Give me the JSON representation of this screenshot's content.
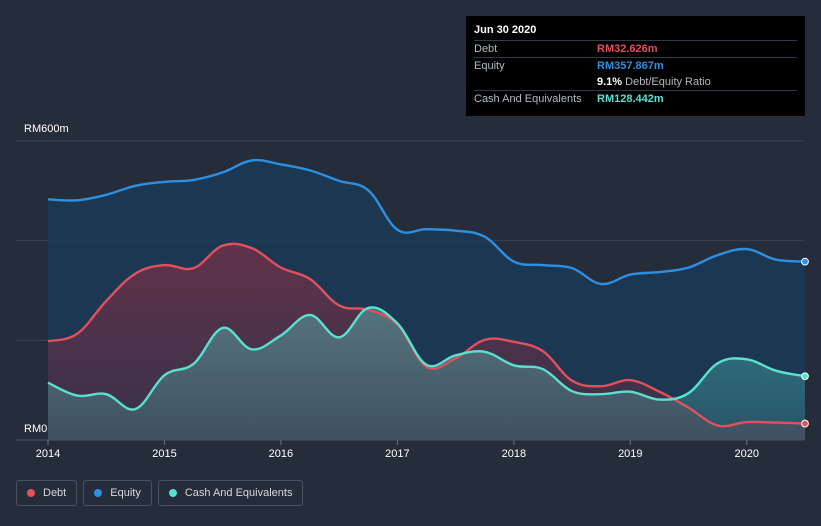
{
  "chart_data": {
    "type": "area",
    "currency_prefix": "RM",
    "y_top_label": "RM600m",
    "y_bottom_label": "RM0",
    "ylim": [
      0,
      600
    ],
    "xlim": [
      2014,
      2020.5
    ],
    "x_ticks": [
      {
        "value": 2014,
        "label": "2014"
      },
      {
        "value": 2015,
        "label": "2015"
      },
      {
        "value": 2016,
        "label": "2016"
      },
      {
        "value": 2017,
        "label": "2017"
      },
      {
        "value": 2018,
        "label": "2018"
      },
      {
        "value": 2019,
        "label": "2019"
      },
      {
        "value": 2020,
        "label": "2020"
      }
    ],
    "series": [
      {
        "name": "Equity",
        "color": "#2d8fe0",
        "points": [
          [
            2014.0,
            483
          ],
          [
            2014.25,
            481
          ],
          [
            2014.5,
            492
          ],
          [
            2014.75,
            510
          ],
          [
            2015.0,
            518
          ],
          [
            2015.25,
            522
          ],
          [
            2015.5,
            537
          ],
          [
            2015.75,
            561
          ],
          [
            2016.0,
            553
          ],
          [
            2016.25,
            541
          ],
          [
            2016.5,
            520
          ],
          [
            2016.75,
            501
          ],
          [
            2017.0,
            422
          ],
          [
            2017.25,
            423
          ],
          [
            2017.5,
            420
          ],
          [
            2017.75,
            408
          ],
          [
            2018.0,
            358
          ],
          [
            2018.25,
            351
          ],
          [
            2018.5,
            345
          ],
          [
            2018.75,
            313
          ],
          [
            2019.0,
            332
          ],
          [
            2019.25,
            337
          ],
          [
            2019.5,
            346
          ],
          [
            2019.75,
            371
          ],
          [
            2020.0,
            383
          ],
          [
            2020.25,
            362
          ],
          [
            2020.5,
            358
          ]
        ]
      },
      {
        "name": "Debt",
        "color": "#e0505e",
        "points": [
          [
            2014.0,
            198
          ],
          [
            2014.25,
            213
          ],
          [
            2014.5,
            279
          ],
          [
            2014.75,
            334
          ],
          [
            2015.0,
            351
          ],
          [
            2015.25,
            345
          ],
          [
            2015.5,
            390
          ],
          [
            2015.75,
            385
          ],
          [
            2016.0,
            346
          ],
          [
            2016.25,
            323
          ],
          [
            2016.5,
            270
          ],
          [
            2016.75,
            261
          ],
          [
            2017.0,
            232
          ],
          [
            2017.25,
            147
          ],
          [
            2017.5,
            164
          ],
          [
            2017.75,
            201
          ],
          [
            2018.0,
            197
          ],
          [
            2018.25,
            178
          ],
          [
            2018.5,
            119
          ],
          [
            2018.75,
            108
          ],
          [
            2019.0,
            120
          ],
          [
            2019.25,
            97
          ],
          [
            2019.5,
            65
          ],
          [
            2019.75,
            29
          ],
          [
            2020.0,
            36
          ],
          [
            2020.25,
            35
          ],
          [
            2020.5,
            33
          ]
        ]
      },
      {
        "name": "Cash And Equivalents",
        "color": "#5ae0cf",
        "points": [
          [
            2014.0,
            115
          ],
          [
            2014.25,
            89
          ],
          [
            2014.5,
            92
          ],
          [
            2014.75,
            62
          ],
          [
            2015.0,
            130
          ],
          [
            2015.25,
            153
          ],
          [
            2015.5,
            225
          ],
          [
            2015.75,
            182
          ],
          [
            2016.0,
            210
          ],
          [
            2016.25,
            251
          ],
          [
            2016.5,
            206
          ],
          [
            2016.75,
            265
          ],
          [
            2017.0,
            234
          ],
          [
            2017.25,
            151
          ],
          [
            2017.5,
            170
          ],
          [
            2017.75,
            177
          ],
          [
            2018.0,
            150
          ],
          [
            2018.25,
            142
          ],
          [
            2018.5,
            98
          ],
          [
            2018.75,
            92
          ],
          [
            2019.0,
            97
          ],
          [
            2019.25,
            81
          ],
          [
            2019.5,
            94
          ],
          [
            2019.75,
            154
          ],
          [
            2020.0,
            162
          ],
          [
            2020.25,
            139
          ],
          [
            2020.5,
            128
          ]
        ]
      }
    ]
  },
  "tooltip": {
    "date": "Jun 30 2020",
    "rows": [
      {
        "label": "Debt",
        "value": "RM32.626m",
        "color": "#e0505e"
      },
      {
        "label": "Equity",
        "value": "RM357.867m",
        "color": "#2d8fe0"
      }
    ],
    "ratio_value": "9.1%",
    "ratio_label": "Debt/Equity Ratio",
    "cash_label": "Cash And Equivalents",
    "cash_value": "RM128.442m",
    "cash_color": "#5ae0cf"
  },
  "legend": [
    {
      "label": "Debt",
      "color": "#e0505e"
    },
    {
      "label": "Equity",
      "color": "#2d8fe0"
    },
    {
      "label": "Cash And Equivalents",
      "color": "#5ae0cf"
    }
  ]
}
